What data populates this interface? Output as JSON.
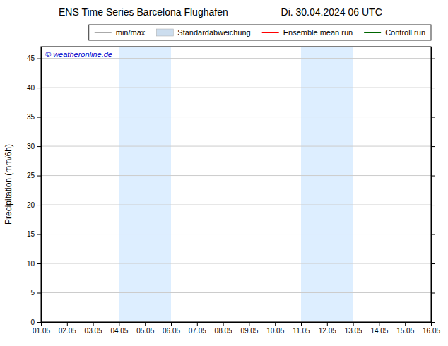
{
  "chart_data": {
    "type": "line",
    "title": "ENS Time Series Barcelona Flughafen",
    "subtitle": "Di. 30.04.2024 06 UTC",
    "y_label": "Precipitation (mm/6h)",
    "annotations": [
      {
        "text": "© weatheronline.de",
        "color": "#0000cc"
      }
    ],
    "categories": [
      "01.05",
      "02.05",
      "03.05",
      "04.05",
      "05.05",
      "06.05",
      "07.05",
      "08.05",
      "09.05",
      "10.05",
      "11.05",
      "12.05",
      "13.05",
      "14.05",
      "15.05",
      "16.05"
    ],
    "bands": [
      {
        "from": "04.05",
        "to": "06.05",
        "color": "#ddeeff"
      },
      {
        "from": "11.05",
        "to": "13.05",
        "color": "#ddeeff"
      }
    ],
    "series": [
      {
        "name": "min/max",
        "type": "line",
        "color": "#aaaaaa",
        "values": [
          null,
          null,
          null,
          null,
          null,
          null,
          null,
          null,
          null,
          null,
          null,
          null,
          null,
          null,
          null,
          null
        ]
      },
      {
        "name": "Standardabweichung",
        "type": "area",
        "color": "#ccddee",
        "values": [
          null,
          null,
          null,
          null,
          null,
          null,
          null,
          null,
          null,
          null,
          null,
          null,
          null,
          null,
          null,
          null
        ]
      },
      {
        "name": "Ensemble mean run",
        "type": "line",
        "color": "#ff0000",
        "values": [
          null,
          null,
          null,
          null,
          null,
          null,
          null,
          null,
          null,
          null,
          null,
          null,
          null,
          null,
          null,
          null
        ]
      },
      {
        "name": "Controll run",
        "type": "line",
        "color": "#006600",
        "values": [
          null,
          null,
          null,
          null,
          null,
          null,
          null,
          null,
          null,
          null,
          null,
          null,
          null,
          null,
          null,
          null
        ]
      }
    ],
    "ylim": [
      0,
      47
    ],
    "yticks": [
      0,
      5,
      10,
      15,
      20,
      25,
      30,
      35,
      40,
      45
    ],
    "grid": true,
    "legend": "top-right"
  }
}
